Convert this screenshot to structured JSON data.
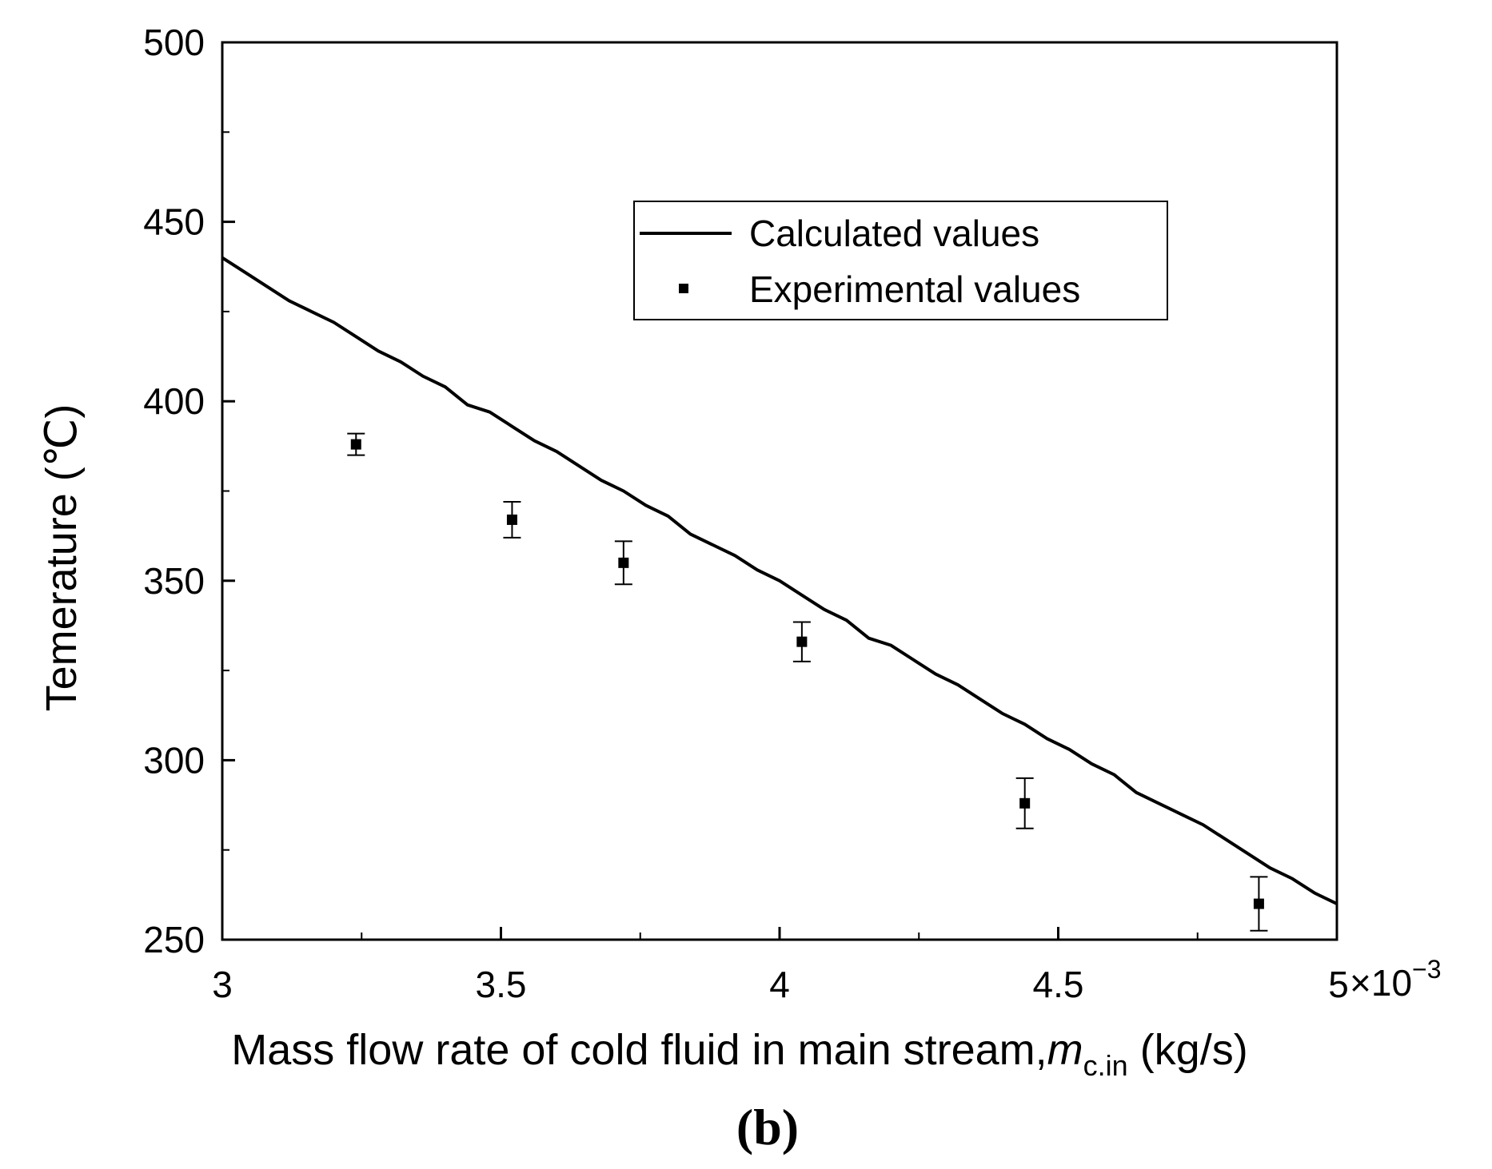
{
  "chart_data": {
    "type": "line",
    "title": "",
    "xlabel": "Mass flow rate of cold fluid in main stream,",
    "xlabel_symbol": "m",
    "xlabel_subscript": "c.in",
    "xlabel_unit": " (kg/s)",
    "ylabel": "Temerature (℃)",
    "x_multiplier_label": "×10",
    "x_multiplier_exponent": "−3",
    "panel_label": "(b)",
    "xlim": [
      3,
      5
    ],
    "ylim": [
      250,
      500
    ],
    "xticks": [
      3,
      3.5,
      4,
      4.5,
      5
    ],
    "xtick_labels": [
      "3",
      "3.5",
      "4",
      "4.5",
      "5"
    ],
    "yticks": [
      250,
      300,
      350,
      400,
      450,
      500
    ],
    "ytick_labels": [
      "250",
      "300",
      "350",
      "400",
      "450",
      "500"
    ],
    "grid": false,
    "legend_position": "top-right",
    "series": [
      {
        "name": "Calculated values",
        "style": "line",
        "x": [
          3.0,
          3.04,
          3.08,
          3.12,
          3.16,
          3.2,
          3.24,
          3.28,
          3.32,
          3.36,
          3.4,
          3.44,
          3.48,
          3.52,
          3.56,
          3.6,
          3.64,
          3.68,
          3.72,
          3.76,
          3.8,
          3.84,
          3.88,
          3.92,
          3.96,
          4.0,
          4.04,
          4.08,
          4.12,
          4.16,
          4.2,
          4.24,
          4.28,
          4.32,
          4.36,
          4.4,
          4.44,
          4.48,
          4.52,
          4.56,
          4.6,
          4.64,
          4.68,
          4.72,
          4.76,
          4.8,
          4.84,
          4.88,
          4.92,
          4.96,
          5.0
        ],
        "y": [
          440,
          436,
          432,
          428,
          425,
          422,
          418,
          414,
          411,
          407,
          404,
          399,
          397,
          393,
          389,
          386,
          382,
          378,
          375,
          371,
          368,
          363,
          360,
          357,
          353,
          350,
          346,
          342,
          339,
          334,
          332,
          328,
          324,
          321,
          317,
          313,
          310,
          306,
          303,
          299,
          296,
          291,
          288,
          285,
          282,
          278,
          274,
          270,
          267,
          263,
          260
        ]
      },
      {
        "name": "Experimental values",
        "style": "marker",
        "x": [
          3.24,
          3.52,
          3.72,
          4.04,
          4.44,
          4.86
        ],
        "y": [
          388,
          367,
          355,
          333,
          288,
          260
        ],
        "error": [
          3,
          5,
          6,
          5.5,
          7,
          7.5
        ]
      }
    ]
  }
}
